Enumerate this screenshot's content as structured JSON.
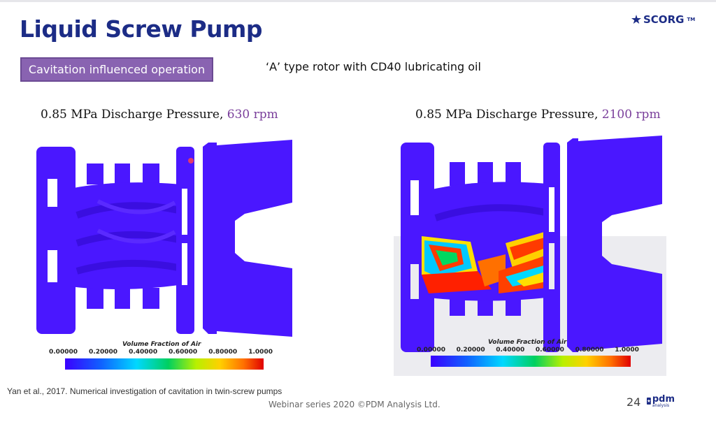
{
  "slide": {
    "title": "Liquid Screw Pump",
    "badge": "Cavitation influenced operation",
    "subtitle": "‘A’ type rotor with CD40 lubricating oil",
    "logo_scorg": "SCORG",
    "logo_scorg_tm": "TM",
    "reference": "Yan et al., 2017. Numerical investigation of cavitation in twin-screw pumps",
    "footer": "Webinar series 2020 ©PDM Analysis Ltd.",
    "page_number": "24",
    "logo_pdm": "pdm",
    "logo_pdm_sub": "analysis"
  },
  "panels": [
    {
      "caption_prefix": "0.85 MPa Discharge Pressure, ",
      "caption_rpm": "630 rpm",
      "colorbar_title": "Volume Fraction of Air",
      "ticks": [
        "0.00000",
        "0.20000",
        "0.40000",
        "0.60000",
        "0.80000",
        "1.0000"
      ]
    },
    {
      "caption_prefix": "0.85 MPa Discharge Pressure, ",
      "caption_rpm": "2100 rpm",
      "colorbar_title": "Volume Fraction of Air",
      "ticks": [
        "0.00000",
        "0.20000",
        "0.40000",
        "0.60000",
        "0.80000",
        "1.0000"
      ]
    }
  ],
  "colors": {
    "title": "#1c2c86",
    "badge_bg": "#8963b1",
    "rpm": "#7a3f9b",
    "fluid_blue": "#4a17ff"
  }
}
